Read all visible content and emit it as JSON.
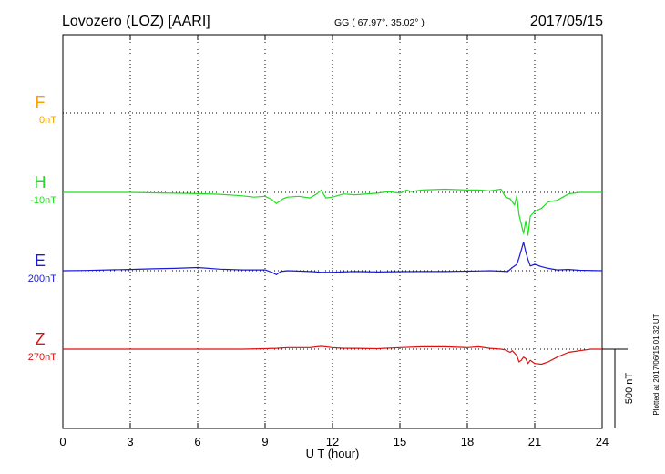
{
  "header": {
    "station": "Lovozero (LOZ)  [AARI]",
    "coords": "GG ( 67.97°,  35.02° )",
    "date": "2017/05/15"
  },
  "plotted_note": "Plotted at 2017/06/15 01:32 UT",
  "scale_label": "500 nT",
  "chart_data": {
    "type": "line",
    "xlabel": "U T (hour)",
    "xlim": [
      0,
      24
    ],
    "xticks": [
      0,
      3,
      6,
      9,
      12,
      15,
      18,
      21,
      24
    ],
    "xtick_labels": [
      "0",
      "3",
      "6",
      "9",
      "12",
      "15",
      "18",
      "21",
      "24"
    ],
    "grid": true,
    "scale_nT": 500,
    "series": [
      {
        "name": "F",
        "baseline_label": "0nT",
        "color": "#f5a300",
        "points": []
      },
      {
        "name": "H",
        "baseline_label": "-10nT",
        "color": "#22dd22",
        "points": [
          [
            0,
            0
          ],
          [
            1,
            0
          ],
          [
            2,
            0
          ],
          [
            3,
            0
          ],
          [
            4,
            -3
          ],
          [
            5,
            -5
          ],
          [
            6,
            -8
          ],
          [
            7,
            -12
          ],
          [
            8,
            -22
          ],
          [
            8.5,
            -30
          ],
          [
            9,
            -25
          ],
          [
            9.3,
            -45
          ],
          [
            9.5,
            -70
          ],
          [
            9.8,
            -40
          ],
          [
            10,
            -30
          ],
          [
            10.5,
            -25
          ],
          [
            11,
            -35
          ],
          [
            11.3,
            -10
          ],
          [
            11.5,
            15
          ],
          [
            11.7,
            -35
          ],
          [
            12,
            -30
          ],
          [
            12.5,
            -10
          ],
          [
            13,
            -15
          ],
          [
            14,
            -5
          ],
          [
            14.5,
            5
          ],
          [
            15,
            -5
          ],
          [
            15.3,
            15
          ],
          [
            15.5,
            5
          ],
          [
            16,
            15
          ],
          [
            17,
            20
          ],
          [
            18,
            15
          ],
          [
            18.5,
            15
          ],
          [
            19,
            10
          ],
          [
            19.5,
            20
          ],
          [
            19.7,
            -30
          ],
          [
            19.9,
            -40
          ],
          [
            20.1,
            -80
          ],
          [
            20.2,
            -20
          ],
          [
            20.3,
            -140
          ],
          [
            20.4,
            -200
          ],
          [
            20.5,
            -260
          ],
          [
            20.6,
            -180
          ],
          [
            20.7,
            -270
          ],
          [
            20.8,
            -150
          ],
          [
            21,
            -120
          ],
          [
            21.3,
            -100
          ],
          [
            21.6,
            -60
          ],
          [
            22,
            -50
          ],
          [
            22.5,
            -10
          ],
          [
            23,
            0
          ],
          [
            24,
            0
          ]
        ]
      },
      {
        "name": "E",
        "baseline_label": "200nT",
        "color": "#1a1ad6",
        "points": [
          [
            0,
            0
          ],
          [
            1,
            2
          ],
          [
            2,
            5
          ],
          [
            3,
            8
          ],
          [
            4,
            12
          ],
          [
            5,
            15
          ],
          [
            6,
            20
          ],
          [
            7,
            10
          ],
          [
            8,
            5
          ],
          [
            9,
            5
          ],
          [
            9.3,
            -10
          ],
          [
            9.5,
            -25
          ],
          [
            9.7,
            -5
          ],
          [
            10,
            0
          ],
          [
            11,
            -5
          ],
          [
            11.5,
            -10
          ],
          [
            12,
            -10
          ],
          [
            13,
            -5
          ],
          [
            14,
            -8
          ],
          [
            15,
            -6
          ],
          [
            16,
            -5
          ],
          [
            17,
            -5
          ],
          [
            18,
            -3
          ],
          [
            18.5,
            -2
          ],
          [
            19,
            0
          ],
          [
            19.5,
            -3
          ],
          [
            19.8,
            -5
          ],
          [
            20,
            20
          ],
          [
            20.2,
            40
          ],
          [
            20.3,
            80
          ],
          [
            20.4,
            130
          ],
          [
            20.5,
            180
          ],
          [
            20.6,
            120
          ],
          [
            20.7,
            70
          ],
          [
            20.8,
            30
          ],
          [
            21,
            40
          ],
          [
            21.3,
            25
          ],
          [
            21.6,
            15
          ],
          [
            22,
            5
          ],
          [
            22.5,
            8
          ],
          [
            23,
            3
          ],
          [
            24,
            0
          ]
        ]
      },
      {
        "name": "Z",
        "baseline_label": "270nT",
        "color": "#dd1111",
        "points": [
          [
            0,
            0
          ],
          [
            3,
            0
          ],
          [
            6,
            0
          ],
          [
            8,
            0
          ],
          [
            9,
            3
          ],
          [
            9.5,
            5
          ],
          [
            10,
            10
          ],
          [
            11,
            10
          ],
          [
            11.5,
            18
          ],
          [
            12,
            10
          ],
          [
            12.5,
            5
          ],
          [
            13,
            5
          ],
          [
            14,
            3
          ],
          [
            15,
            10
          ],
          [
            16,
            15
          ],
          [
            17,
            15
          ],
          [
            18,
            10
          ],
          [
            18.5,
            15
          ],
          [
            19,
            5
          ],
          [
            19.5,
            0
          ],
          [
            19.7,
            -5
          ],
          [
            19.9,
            -20
          ],
          [
            20,
            -10
          ],
          [
            20.2,
            -40
          ],
          [
            20.3,
            -80
          ],
          [
            20.4,
            -70
          ],
          [
            20.5,
            -50
          ],
          [
            20.6,
            -60
          ],
          [
            20.7,
            -90
          ],
          [
            20.8,
            -70
          ],
          [
            21,
            -90
          ],
          [
            21.3,
            -95
          ],
          [
            21.6,
            -80
          ],
          [
            22,
            -50
          ],
          [
            22.5,
            -20
          ],
          [
            23,
            -10
          ],
          [
            23.5,
            0
          ],
          [
            24,
            0
          ]
        ]
      }
    ]
  }
}
